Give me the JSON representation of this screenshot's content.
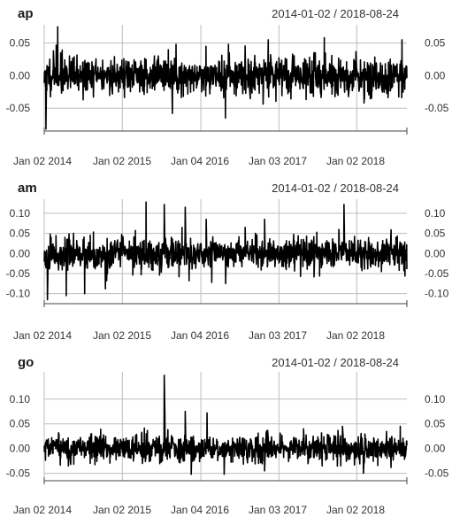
{
  "chart_data": [
    {
      "type": "line",
      "title": "ap",
      "date_range": "2014-01-02 / 2018-08-24",
      "x_tick_labels": [
        "Jan 02 2014",
        "Jan 02 2015",
        "Jan 04 2016",
        "Jan 03 2017",
        "Jan 02 2018"
      ],
      "x_tick_dates": [
        "2014-01-02",
        "2015-01-02",
        "2016-01-04",
        "2017-01-03",
        "2018-01-02"
      ],
      "x_range": [
        "2014-01-02",
        "2018-08-24"
      ],
      "ylim": [
        -0.085,
        0.078
      ],
      "y_ticks": [
        0.05,
        0.0,
        -0.05
      ],
      "y_tick_labels": [
        "0.05",
        "0.00",
        "-0.05"
      ],
      "grid": true,
      "amplitude": 0.012,
      "seed": 11,
      "spikes": [
        {
          "date": "2014-01-10",
          "value": -0.082
        },
        {
          "date": "2014-02-14",
          "value": 0.038
        },
        {
          "date": "2014-03-06",
          "value": 0.075
        },
        {
          "date": "2014-03-20",
          "value": 0.035
        },
        {
          "date": "2015-08-24",
          "value": -0.058
        },
        {
          "date": "2015-09-10",
          "value": 0.048
        },
        {
          "date": "2016-04-28",
          "value": -0.065
        },
        {
          "date": "2016-05-12",
          "value": 0.048
        },
        {
          "date": "2016-01-28",
          "value": 0.045
        },
        {
          "date": "2016-11-14",
          "value": 0.055
        },
        {
          "date": "2017-08-03",
          "value": 0.058
        },
        {
          "date": "2018-08-01",
          "value": 0.055
        },
        {
          "date": "2018-02-05",
          "value": -0.042
        }
      ]
    },
    {
      "type": "line",
      "title": "am",
      "date_range": "2014-01-02 / 2018-08-24",
      "x_tick_labels": [
        "Jan 02 2014",
        "Jan 02 2015",
        "Jan 04 2016",
        "Jan 03 2017",
        "Jan 02 2018"
      ],
      "x_tick_dates": [
        "2014-01-02",
        "2015-01-02",
        "2016-01-04",
        "2017-01-03",
        "2018-01-02"
      ],
      "x_range": [
        "2014-01-02",
        "2018-08-24"
      ],
      "ylim": [
        -0.125,
        0.135
      ],
      "y_ticks": [
        0.1,
        0.05,
        0.0,
        -0.05,
        -0.1
      ],
      "y_tick_labels": [
        "0.10",
        "0.05",
        "0.00",
        "-0.05",
        "-0.10"
      ],
      "grid": true,
      "amplitude": 0.016,
      "seed": 23,
      "spikes": [
        {
          "date": "2014-01-17",
          "value": -0.115
        },
        {
          "date": "2014-04-15",
          "value": -0.105
        },
        {
          "date": "2014-07-10",
          "value": -0.1
        },
        {
          "date": "2014-10-15",
          "value": -0.088
        },
        {
          "date": "2014-01-30",
          "value": 0.048
        },
        {
          "date": "2015-04-23",
          "value": 0.128
        },
        {
          "date": "2015-07-17",
          "value": 0.122
        },
        {
          "date": "2015-10-23",
          "value": 0.115
        },
        {
          "date": "2015-11-10",
          "value": -0.068
        },
        {
          "date": "2016-01-29",
          "value": 0.085
        },
        {
          "date": "2016-04-29",
          "value": -0.075
        },
        {
          "date": "2016-02-24",
          "value": -0.072
        },
        {
          "date": "2016-07-29",
          "value": 0.065
        },
        {
          "date": "2016-10-28",
          "value": 0.085
        },
        {
          "date": "2017-04-28",
          "value": 0.035
        },
        {
          "date": "2017-11-03",
          "value": 0.122
        },
        {
          "date": "2018-04-27",
          "value": -0.045
        }
      ]
    },
    {
      "type": "line",
      "title": "go",
      "date_range": "2014-01-02 / 2018-08-24",
      "x_tick_labels": [
        "Jan 02 2014",
        "Jan 02 2015",
        "Jan 04 2016",
        "Jan 03 2017",
        "Jan 02 2018"
      ],
      "x_tick_dates": [
        "2014-01-02",
        "2015-01-02",
        "2016-01-04",
        "2017-01-03",
        "2018-01-02"
      ],
      "x_range": [
        "2014-01-02",
        "2018-08-24"
      ],
      "ylim": [
        -0.065,
        0.155
      ],
      "y_ticks": [
        0.1,
        0.05,
        0.0,
        -0.05
      ],
      "y_tick_labels": [
        "0.10",
        "0.05",
        "0.00",
        "-0.05"
      ],
      "grid": true,
      "amplitude": 0.011,
      "seed": 37,
      "spikes": [
        {
          "date": "2014-04-25",
          "value": -0.035
        },
        {
          "date": "2015-04-24",
          "value": 0.03
        },
        {
          "date": "2015-07-17",
          "value": 0.148
        },
        {
          "date": "2015-07-20",
          "value": 0.065
        },
        {
          "date": "2015-10-23",
          "value": 0.075
        },
        {
          "date": "2015-11-20",
          "value": -0.052
        },
        {
          "date": "2016-02-02",
          "value": 0.072
        },
        {
          "date": "2016-04-22",
          "value": -0.052
        },
        {
          "date": "2016-10-28",
          "value": -0.045
        },
        {
          "date": "2017-04-28",
          "value": 0.04
        },
        {
          "date": "2017-07-24",
          "value": -0.035
        },
        {
          "date": "2017-10-27",
          "value": 0.045
        },
        {
          "date": "2018-02-02",
          "value": -0.05
        },
        {
          "date": "2018-07-24",
          "value": 0.045
        }
      ]
    }
  ]
}
